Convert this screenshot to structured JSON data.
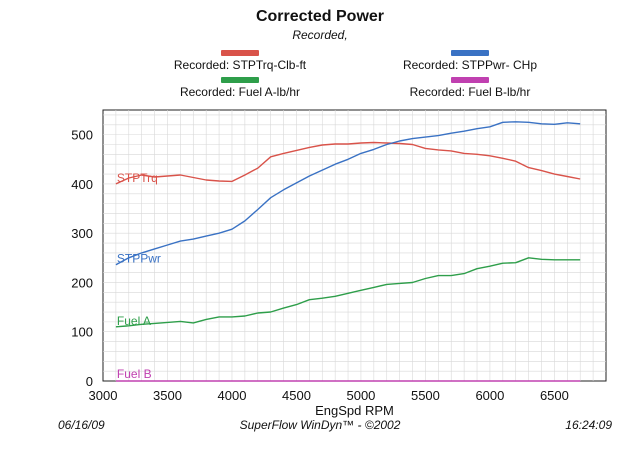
{
  "header": {
    "title": "Corrected Power",
    "subtitle": "Recorded,"
  },
  "legend": [
    {
      "label": "Recorded: STPTrq-Clb-ft",
      "color": "#d9534a"
    },
    {
      "label": "Recorded: STPPwr- CHp",
      "color": "#3a72c4"
    },
    {
      "label": "Recorded: Fuel A-lb/hr",
      "color": "#2e9e4a"
    },
    {
      "label": "Recorded: Fuel B-lb/hr",
      "color": "#c040b0"
    }
  ],
  "footer": {
    "date": "06/16/09",
    "software": "SuperFlow WinDyn™ - ©2002",
    "time": "16:24:09"
  },
  "chart_data": {
    "type": "line",
    "title": "Corrected Power",
    "xlabel": "EngSpd  RPM",
    "ylabel": "",
    "xlim": [
      3000,
      6900
    ],
    "ylim": [
      0,
      550
    ],
    "xticks": [
      3000,
      3500,
      4000,
      4500,
      5000,
      5500,
      6000,
      6500
    ],
    "yticks": [
      0,
      100,
      200,
      300,
      400,
      500
    ],
    "grid": true,
    "series": [
      {
        "name": "STPTrq",
        "color": "#d9534a",
        "x": [
          3100,
          3200,
          3300,
          3400,
          3500,
          3600,
          3700,
          3800,
          3900,
          4000,
          4100,
          4200,
          4300,
          4400,
          4500,
          4600,
          4700,
          4800,
          4900,
          5000,
          5100,
          5200,
          5300,
          5400,
          5500,
          5600,
          5700,
          5800,
          5900,
          6000,
          6100,
          6200,
          6300,
          6400,
          6500,
          6600,
          6700
        ],
        "values": [
          400,
          412,
          418,
          414,
          416,
          418,
          413,
          408,
          406,
          405,
          418,
          432,
          455,
          462,
          468,
          474,
          479,
          481,
          481,
          483,
          484,
          483,
          482,
          480,
          472,
          469,
          467,
          462,
          460,
          457,
          452,
          446,
          433,
          427,
          420,
          415,
          410
        ]
      },
      {
        "name": "STPPwr",
        "color": "#3a72c4",
        "x": [
          3100,
          3200,
          3300,
          3400,
          3500,
          3600,
          3700,
          3800,
          3900,
          4000,
          4100,
          4200,
          4300,
          4400,
          4500,
          4600,
          4700,
          4800,
          4900,
          5000,
          5100,
          5200,
          5300,
          5400,
          5500,
          5600,
          5700,
          5800,
          5900,
          6000,
          6100,
          6200,
          6300,
          6400,
          6500,
          6600,
          6700
        ],
        "values": [
          236,
          250,
          260,
          268,
          276,
          284,
          288,
          294,
          300,
          308,
          325,
          348,
          372,
          388,
          402,
          416,
          428,
          440,
          450,
          462,
          470,
          480,
          487,
          492,
          495,
          498,
          503,
          507,
          512,
          516,
          525,
          526,
          525,
          522,
          521,
          524,
          522
        ]
      },
      {
        "name": "Fuel A",
        "color": "#2e9e4a",
        "x": [
          3100,
          3200,
          3300,
          3400,
          3500,
          3600,
          3700,
          3800,
          3900,
          4000,
          4100,
          4200,
          4300,
          4400,
          4500,
          4600,
          4700,
          4800,
          4900,
          5000,
          5100,
          5200,
          5300,
          5400,
          5500,
          5600,
          5700,
          5800,
          5900,
          6000,
          6100,
          6200,
          6300,
          6400,
          6500,
          6600,
          6700
        ],
        "values": [
          110,
          112,
          115,
          117,
          119,
          121,
          118,
          125,
          130,
          130,
          132,
          138,
          140,
          148,
          155,
          165,
          168,
          172,
          178,
          184,
          190,
          196,
          198,
          200,
          208,
          214,
          214,
          218,
          228,
          233,
          239,
          240,
          250,
          247,
          246,
          246,
          246
        ]
      },
      {
        "name": "Fuel B",
        "color": "#c040b0",
        "x": [
          3100,
          6700
        ],
        "values": [
          0,
          0
        ]
      }
    ]
  }
}
